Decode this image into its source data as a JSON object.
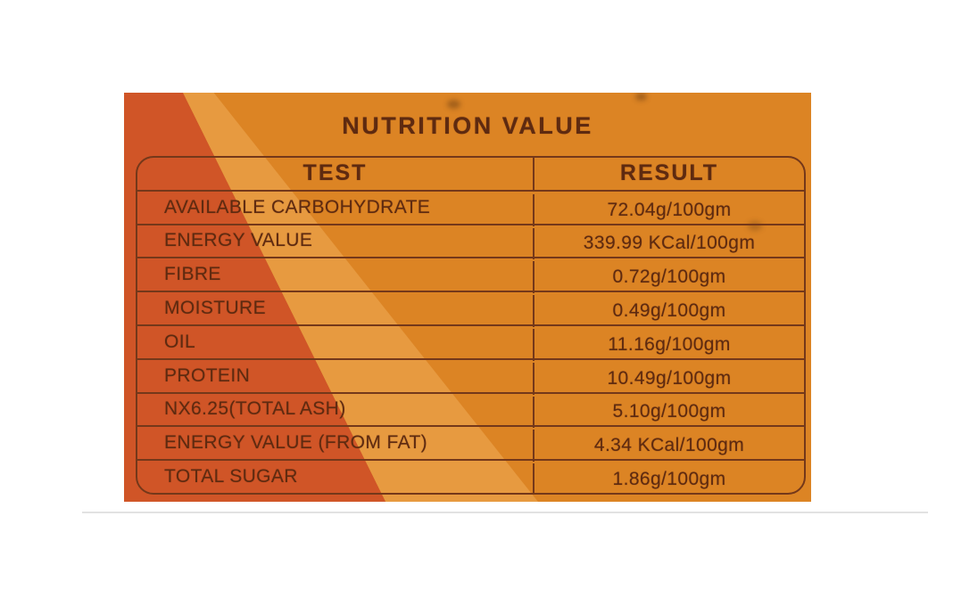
{
  "label": {
    "title": "NUTRITION VALUE",
    "columns": [
      "TEST",
      "RESULT"
    ],
    "rows": [
      {
        "test": "AVAILABLE CARBOHYDRATE",
        "result": "72.04g/100gm"
      },
      {
        "test": "ENERGY VALUE",
        "result": "339.99 KCal/100gm"
      },
      {
        "test": "FIBRE",
        "result": "0.72g/100gm"
      },
      {
        "test": "MOISTURE",
        "result": "0.49g/100gm"
      },
      {
        "test": "OIL",
        "result": "11.16g/100gm"
      },
      {
        "test": "PROTEIN",
        "result": "10.49g/100gm"
      },
      {
        "test": "NX6.25(TOTAL ASH)",
        "result": "5.10g/100gm"
      },
      {
        "test": "ENERGY VALUE (FROM FAT)",
        "result": "4.34 KCal/100gm"
      },
      {
        "test": "TOTAL SUGAR",
        "result": "1.86g/100gm"
      }
    ],
    "colors": {
      "background_dark": "#d05527",
      "background_light_band": "#e79a40",
      "background_main": "#dc8424",
      "ink": "#5e2a10",
      "line": "#74381a"
    }
  }
}
